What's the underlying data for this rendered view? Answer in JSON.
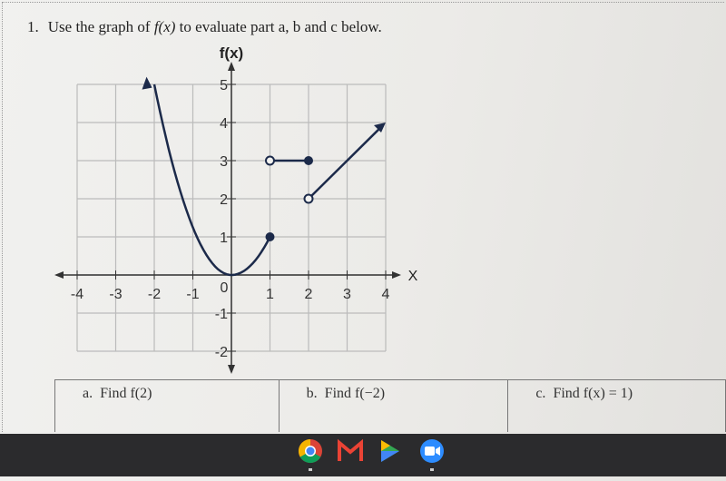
{
  "question": {
    "number": "1.",
    "text_before": "Use the graph of ",
    "function": "f(x)",
    "text_after": " to evaluate part a, b and c below."
  },
  "graph": {
    "y_label": "f(x)",
    "x_label": "X",
    "origin": "0",
    "x_ticks": [
      "-4",
      "-3",
      "-2",
      "-1",
      "1",
      "2",
      "3",
      "4"
    ],
    "y_ticks": [
      "5",
      "4",
      "3",
      "2",
      "1",
      "-1",
      "-2"
    ]
  },
  "parts": [
    {
      "letter": "a.",
      "text": "Find f(2)"
    },
    {
      "letter": "b.",
      "text": "Find f(−2)"
    },
    {
      "letter": "c.",
      "text": "Find f(x) = 1)"
    }
  ]
}
